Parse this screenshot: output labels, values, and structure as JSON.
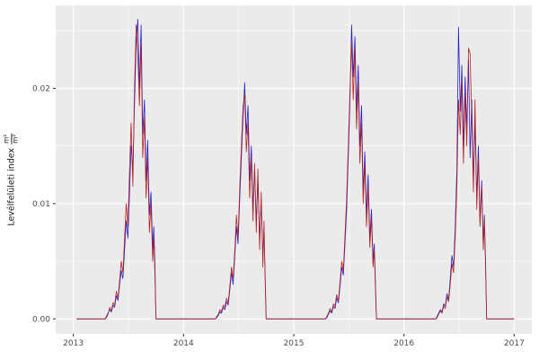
{
  "figure": {
    "ylabel_text": "Levélfelületi index",
    "ylabel_frac_numerator": "m²",
    "ylabel_frac_denominator": "m²"
  },
  "chart_data": {
    "type": "line",
    "title": "",
    "xlabel": "",
    "ylabel": "Levélfelületi index m²/m²",
    "legend": "none",
    "grid": true,
    "panel_background": "#EBEBEB",
    "grid_color": "#FFFFFF",
    "tick_color": "#333333",
    "tick_label_color": "#4D4D4D",
    "xlim": [
      2012.84,
      2017.16
    ],
    "ylim": [
      -0.0013,
      0.0272
    ],
    "x_ticks": [
      2013,
      2014,
      2015,
      2016,
      2017
    ],
    "x_tick_labels": [
      "2013",
      "2014",
      "2015",
      "2016",
      "2017"
    ],
    "x_minor_ticks": [
      2013.5,
      2014.5,
      2015.5,
      2016.5
    ],
    "y_ticks": [
      0,
      0.01,
      0.02
    ],
    "y_tick_labels": [
      "0.00",
      "0.01",
      "0.02"
    ],
    "y_minor_ticks": [
      0.005,
      0.015,
      0.025
    ],
    "series_meta": [
      {
        "name": "series-blue",
        "color": "#2222CC",
        "width": 0.8
      },
      {
        "name": "series-red",
        "color": "#B22222",
        "width": 0.8
      }
    ],
    "baseline_x_start": 2013.03,
    "baseline_x_end": 2017.0,
    "season_lead_zero_dx": 0.29,
    "season_trail_zero_dx": 0.75,
    "dx_grid": [
      0.3,
      0.315,
      0.33,
      0.345,
      0.36,
      0.375,
      0.39,
      0.405,
      0.42,
      0.435,
      0.45,
      0.465,
      0.48,
      0.495,
      0.51,
      0.525,
      0.54,
      0.555,
      0.57,
      0.585,
      0.6,
      0.615,
      0.63,
      0.645,
      0.66,
      0.675,
      0.69,
      0.705,
      0.72,
      0.73,
      0.74
    ],
    "seasons": [
      {
        "year": 2013,
        "blue": [
          0.0002,
          0.0005,
          0.0008,
          0.0006,
          0.0012,
          0.001,
          0.002,
          0.0016,
          0.003,
          0.0042,
          0.0035,
          0.006,
          0.0085,
          0.007,
          0.011,
          0.015,
          0.013,
          0.0185,
          0.024,
          0.026,
          0.02,
          0.0255,
          0.016,
          0.019,
          0.012,
          0.0155,
          0.009,
          0.011,
          0.006,
          0.008,
          0.005
        ],
        "red": [
          0.0001,
          0.0004,
          0.001,
          0.0007,
          0.0014,
          0.0012,
          0.0024,
          0.0018,
          0.0034,
          0.005,
          0.004,
          0.007,
          0.01,
          0.008,
          0.013,
          0.017,
          0.0115,
          0.02,
          0.0255,
          0.023,
          0.0185,
          0.024,
          0.014,
          0.0175,
          0.0105,
          0.014,
          0.0075,
          0.01,
          0.005,
          0.007,
          0.004
        ]
      },
      {
        "year": 2014,
        "blue": [
          0.0001,
          0.0003,
          0.0006,
          0.0005,
          0.001,
          0.0008,
          0.0015,
          0.0012,
          0.0025,
          0.004,
          0.003,
          0.0055,
          0.008,
          0.0065,
          0.0105,
          0.014,
          0.0175,
          0.0205,
          0.016,
          0.0185,
          0.012,
          0.015,
          0.0095,
          0.013,
          0.0085,
          0.012,
          0.007,
          0.01,
          0.0055,
          0.0075,
          0.004
        ],
        "red": [
          0.0002,
          0.0004,
          0.0008,
          0.0006,
          0.0012,
          0.001,
          0.0018,
          0.0014,
          0.0028,
          0.0045,
          0.0035,
          0.006,
          0.009,
          0.007,
          0.0115,
          0.015,
          0.0185,
          0.0195,
          0.0145,
          0.017,
          0.0105,
          0.014,
          0.0085,
          0.0135,
          0.0075,
          0.013,
          0.006,
          0.011,
          0.0045,
          0.0085,
          0.0035
        ]
      },
      {
        "year": 2015,
        "blue": [
          0.0001,
          0.0004,
          0.0007,
          0.0005,
          0.0011,
          0.0009,
          0.0018,
          0.0014,
          0.0028,
          0.0045,
          0.0038,
          0.0065,
          0.0095,
          0.014,
          0.019,
          0.0255,
          0.021,
          0.0245,
          0.018,
          0.022,
          0.015,
          0.0185,
          0.011,
          0.0145,
          0.009,
          0.0125,
          0.007,
          0.0095,
          0.005,
          0.0065,
          0.0035
        ],
        "red": [
          0.0002,
          0.0005,
          0.0009,
          0.0006,
          0.0013,
          0.0011,
          0.0021,
          0.0016,
          0.0032,
          0.005,
          0.0042,
          0.0072,
          0.0105,
          0.015,
          0.02,
          0.024,
          0.019,
          0.0235,
          0.0165,
          0.0205,
          0.0135,
          0.017,
          0.01,
          0.0135,
          0.008,
          0.0115,
          0.0062,
          0.0088,
          0.0045,
          0.006,
          0.003
        ]
      },
      {
        "year": 2016,
        "blue": [
          0.0002,
          0.0005,
          0.0008,
          0.0006,
          0.0013,
          0.0011,
          0.0022,
          0.0017,
          0.0035,
          0.0055,
          0.0045,
          0.008,
          0.013,
          0.0253,
          0.018,
          0.022,
          0.015,
          0.021,
          0.0165,
          0.0225,
          0.014,
          0.019,
          0.012,
          0.017,
          0.0105,
          0.015,
          0.0085,
          0.012,
          0.0065,
          0.009,
          0.005
        ],
        "red": [
          0.0001,
          0.0004,
          0.0007,
          0.0005,
          0.0011,
          0.0009,
          0.0019,
          0.0015,
          0.003,
          0.0048,
          0.004,
          0.007,
          0.0115,
          0.019,
          0.016,
          0.0205,
          0.0135,
          0.0195,
          0.015,
          0.0235,
          0.023,
          0.0175,
          0.011,
          0.019,
          0.0095,
          0.014,
          0.008,
          0.0115,
          0.006,
          0.0085,
          0.0045
        ]
      }
    ]
  }
}
